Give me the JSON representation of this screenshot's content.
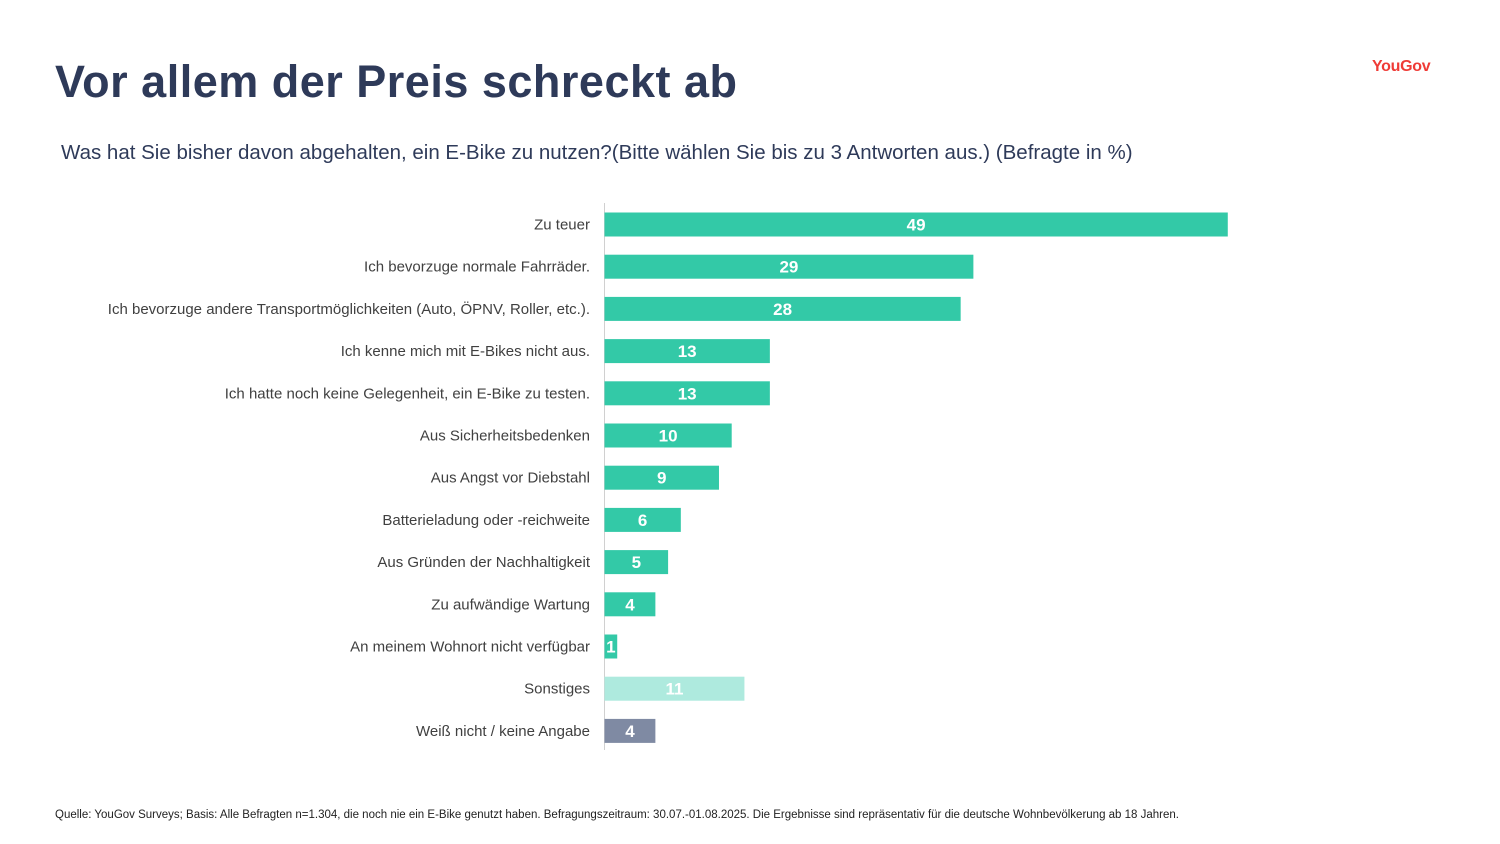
{
  "header": {
    "title": "Vor allem der Preis schreckt ab",
    "logo": "YouGov",
    "subtitle": "Was hat Sie bisher davon abgehalten, ein E-Bike zu nutzen?(Bitte wählen Sie bis zu 3 Antworten aus.) (Befragte in %)"
  },
  "footer": {
    "source": "Quelle: YouGov Surveys; Basis: Alle Befragten n=1.304, die noch nie ein E-Bike genutzt haben. Befragungszeitraum: 30.07.-01.08.2025. Die Ergebnisse sind repräsentativ für die deutsche Wohnbevölkerung ab 18 Jahren."
  },
  "colors": {
    "primary": "#33c9a7",
    "other": "#aeeade",
    "dont_know": "#7f8aa3",
    "title": "#2e3a59",
    "brand": "#ef3b36"
  },
  "chart_data": {
    "type": "bar",
    "orientation": "horizontal",
    "categories": [
      "Zu teuer",
      "Ich bevorzuge normale Fahrräder.",
      "Ich bevorzuge andere Transportmöglichkeiten (Auto, ÖPNV, Roller, etc.).",
      "Ich kenne mich mit E-Bikes nicht aus.",
      "Ich hatte noch keine Gelegenheit, ein E-Bike zu testen.",
      "Aus Sicherheitsbedenken",
      "Aus Angst vor Diebstahl",
      "Batterieladung oder -reichweite",
      "Aus Gründen der Nachhaltigkeit",
      "Zu aufwändige Wartung",
      "An meinem Wohnort nicht verfügbar",
      "Sonstiges",
      "Weiß nicht / keine Angabe"
    ],
    "values": [
      49,
      29,
      28,
      13,
      13,
      10,
      9,
      6,
      5,
      4,
      1,
      11,
      4
    ],
    "bar_colors": [
      "#33c9a7",
      "#33c9a7",
      "#33c9a7",
      "#33c9a7",
      "#33c9a7",
      "#33c9a7",
      "#33c9a7",
      "#33c9a7",
      "#33c9a7",
      "#33c9a7",
      "#33c9a7",
      "#aeeade",
      "#7f8aa3"
    ],
    "xlim": [
      0,
      49
    ],
    "data_labels": true,
    "grid": false,
    "legend": "none"
  }
}
